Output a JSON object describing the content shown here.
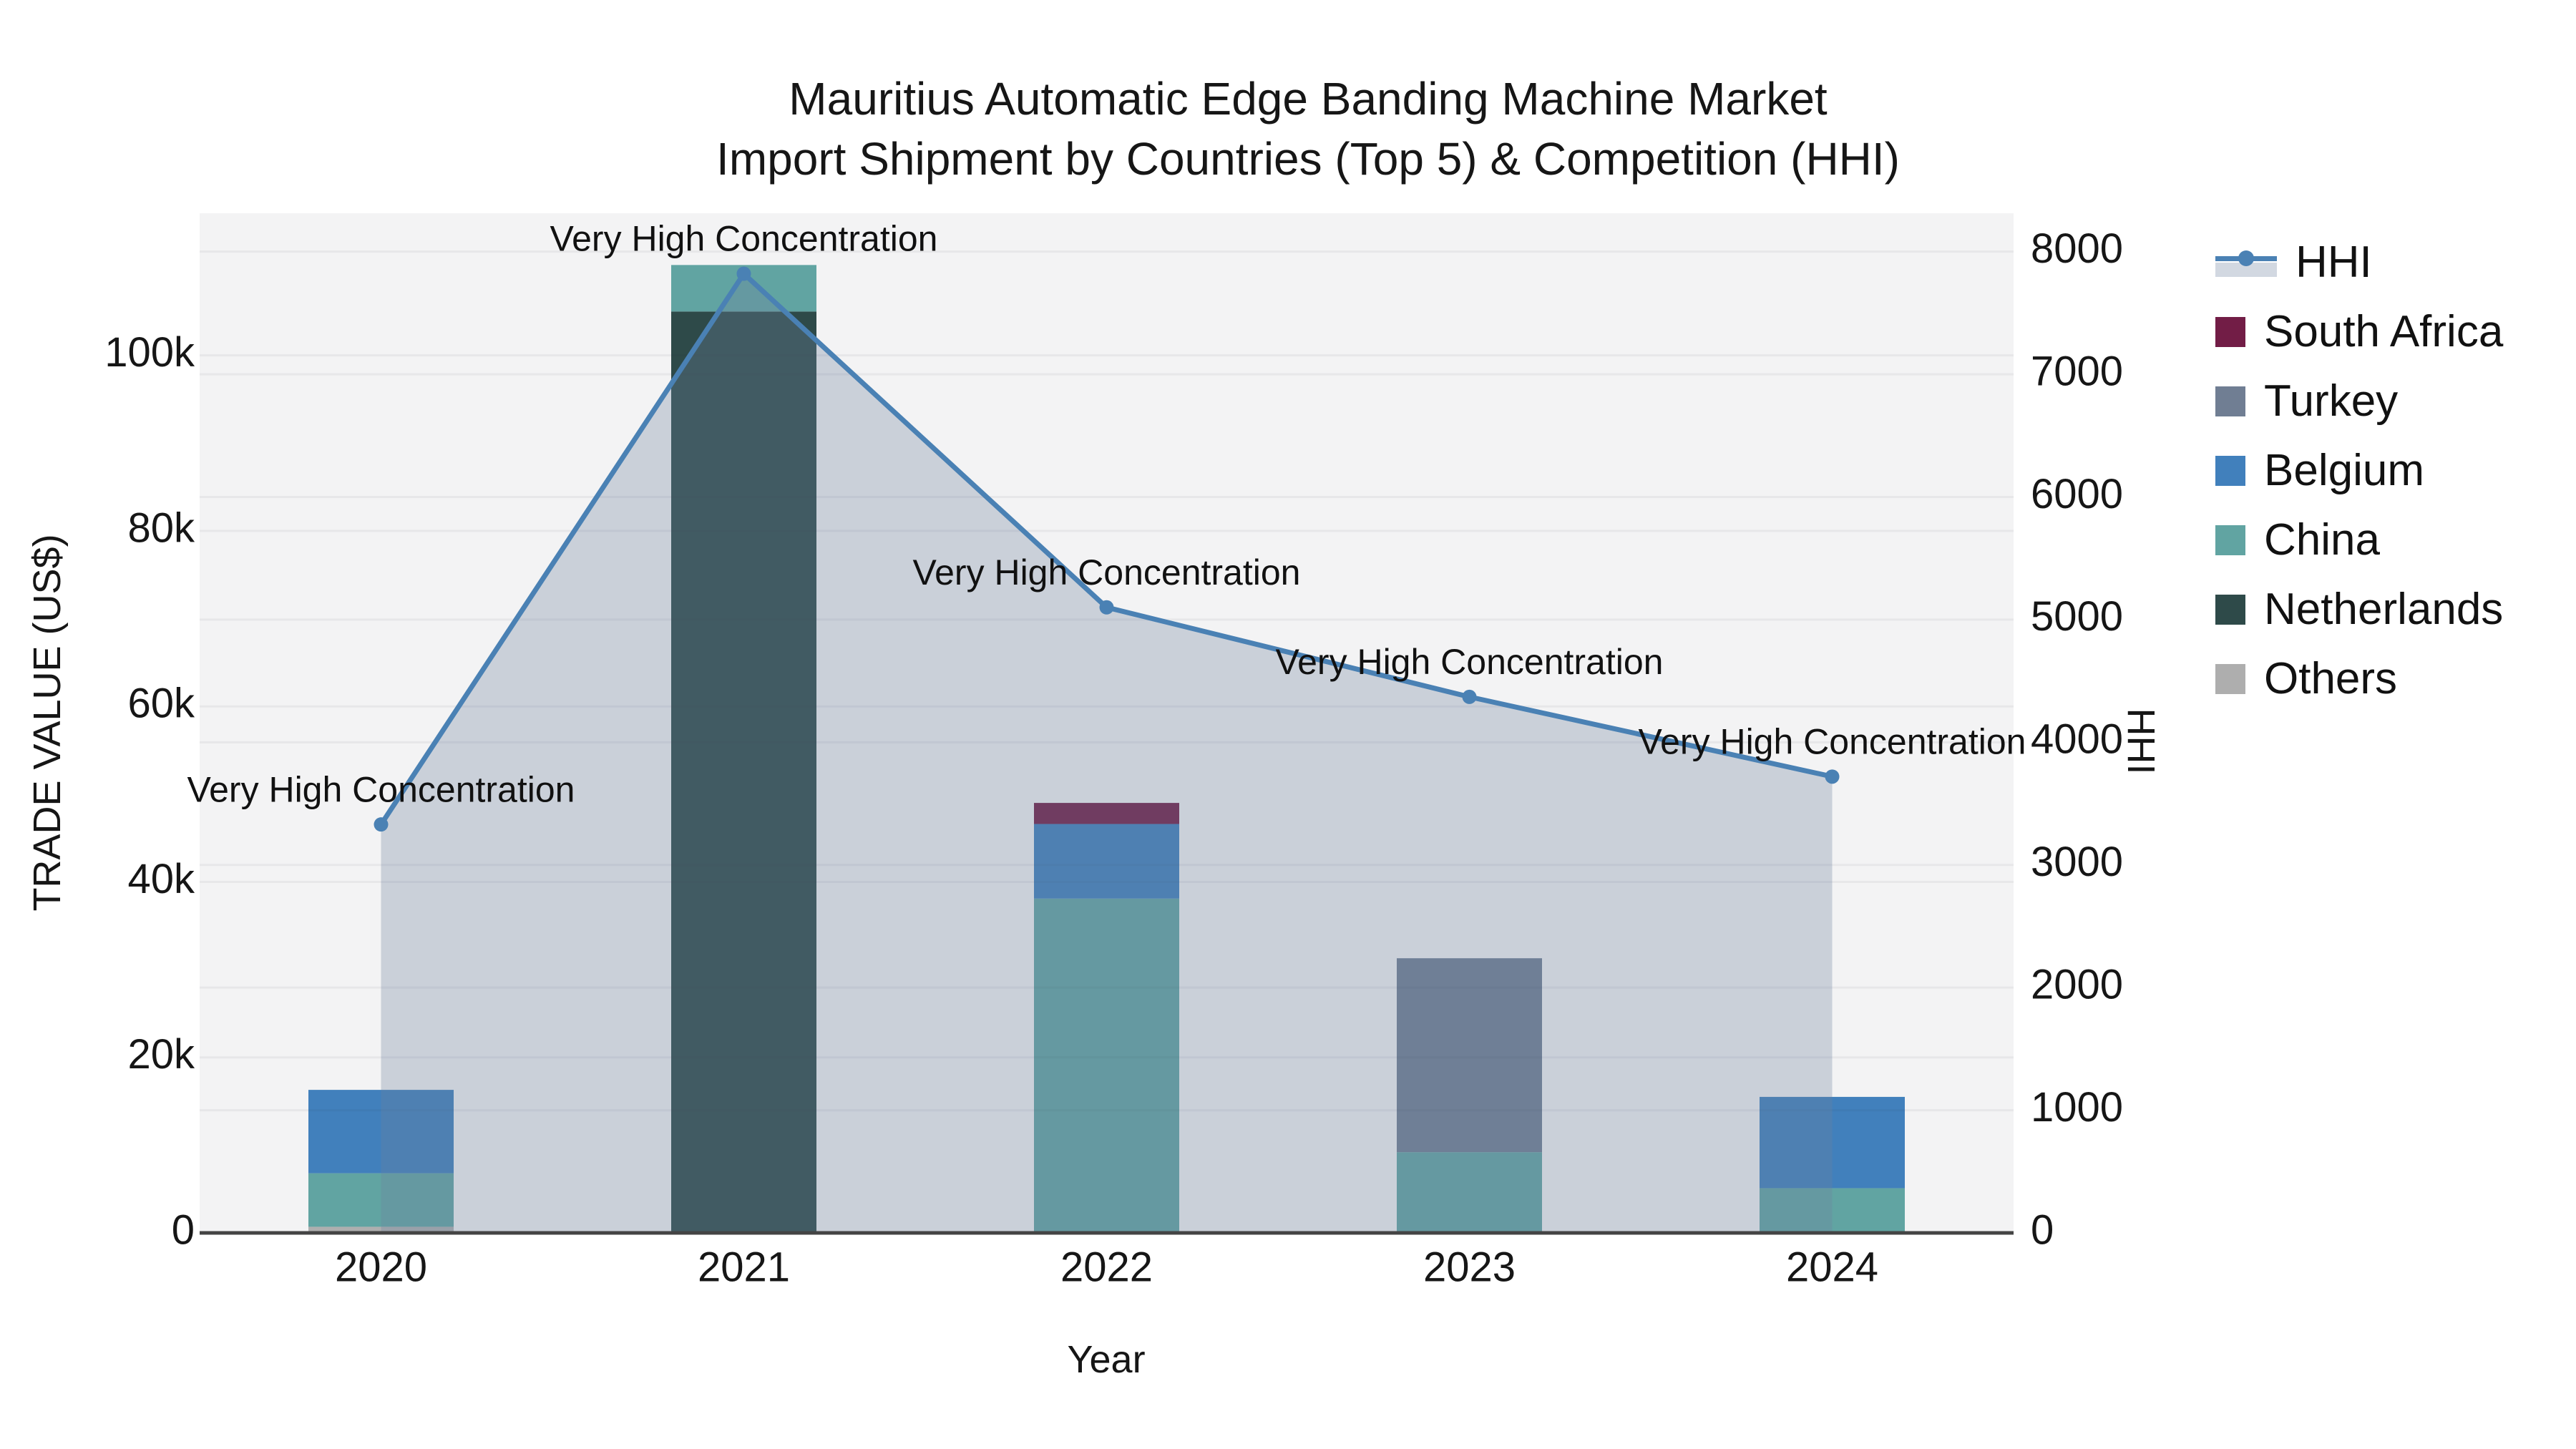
{
  "title": {
    "line1": "Mauritius Automatic Edge Banding Machine Market",
    "line2": "Import Shipment by Countries (Top 5) & Competition (HHI)"
  },
  "chart_data": {
    "type": "bar+line",
    "categories": [
      "2020",
      "2021",
      "2022",
      "2023",
      "2024"
    ],
    "series": [
      {
        "name": "Others",
        "color": "#aeaeae",
        "values": [
          700,
          0,
          0,
          0,
          0
        ]
      },
      {
        "name": "Netherlands",
        "color": "#2e4a49",
        "values": [
          0,
          105000,
          0,
          0,
          0
        ]
      },
      {
        "name": "China",
        "color": "#61a4a2",
        "values": [
          6100,
          5300,
          38100,
          9200,
          5100
        ]
      },
      {
        "name": "Belgium",
        "color": "#4180bc",
        "values": [
          9500,
          0,
          8500,
          0,
          10400
        ]
      },
      {
        "name": "Turkey",
        "color": "#707e93",
        "values": [
          0,
          0,
          0,
          22100,
          0
        ]
      },
      {
        "name": "South Africa",
        "color": "#721d46",
        "values": [
          0,
          0,
          2400,
          0,
          0
        ]
      }
    ],
    "hhi": {
      "name": "HHI",
      "line_color": "#4a81b4",
      "area_fill_color": "rgba(110,129,159,0.31)",
      "values": [
        3330,
        7820,
        5100,
        4370,
        3720
      ]
    },
    "annotations": [
      {
        "x": "2020",
        "text": "Very High Concentration"
      },
      {
        "x": "2021",
        "text": "Very High Concentration"
      },
      {
        "x": "2022",
        "text": "Very High Concentration"
      },
      {
        "x": "2023",
        "text": "Very High Concentration"
      },
      {
        "x": "2024",
        "text": "Very High Concentration"
      }
    ],
    "x_axis": {
      "title": "Year"
    },
    "y_left": {
      "title": "TRADE VALUE (US$)",
      "lim": [
        0,
        116200
      ],
      "ticks": [
        {
          "value": 0,
          "label": "0"
        },
        {
          "value": 20000,
          "label": "20k"
        },
        {
          "value": 40000,
          "label": "40k"
        },
        {
          "value": 60000,
          "label": "60k"
        },
        {
          "value": 80000,
          "label": "80k"
        },
        {
          "value": 100000,
          "label": "100k"
        }
      ]
    },
    "y_right": {
      "title": "HHI",
      "lim": [
        0,
        8313
      ],
      "ticks": [
        {
          "value": 0,
          "label": "0"
        },
        {
          "value": 1000,
          "label": "1000"
        },
        {
          "value": 2000,
          "label": "2000"
        },
        {
          "value": 3000,
          "label": "3000"
        },
        {
          "value": 4000,
          "label": "4000"
        },
        {
          "value": 5000,
          "label": "5000"
        },
        {
          "value": 6000,
          "label": "6000"
        },
        {
          "value": 7000,
          "label": "7000"
        },
        {
          "value": 8000,
          "label": "8000"
        }
      ]
    },
    "grid": true,
    "legend_position": "right",
    "plot_bg_color": "#f3f3f4",
    "axis_line_color": "#444444",
    "text_color": "#161616"
  }
}
